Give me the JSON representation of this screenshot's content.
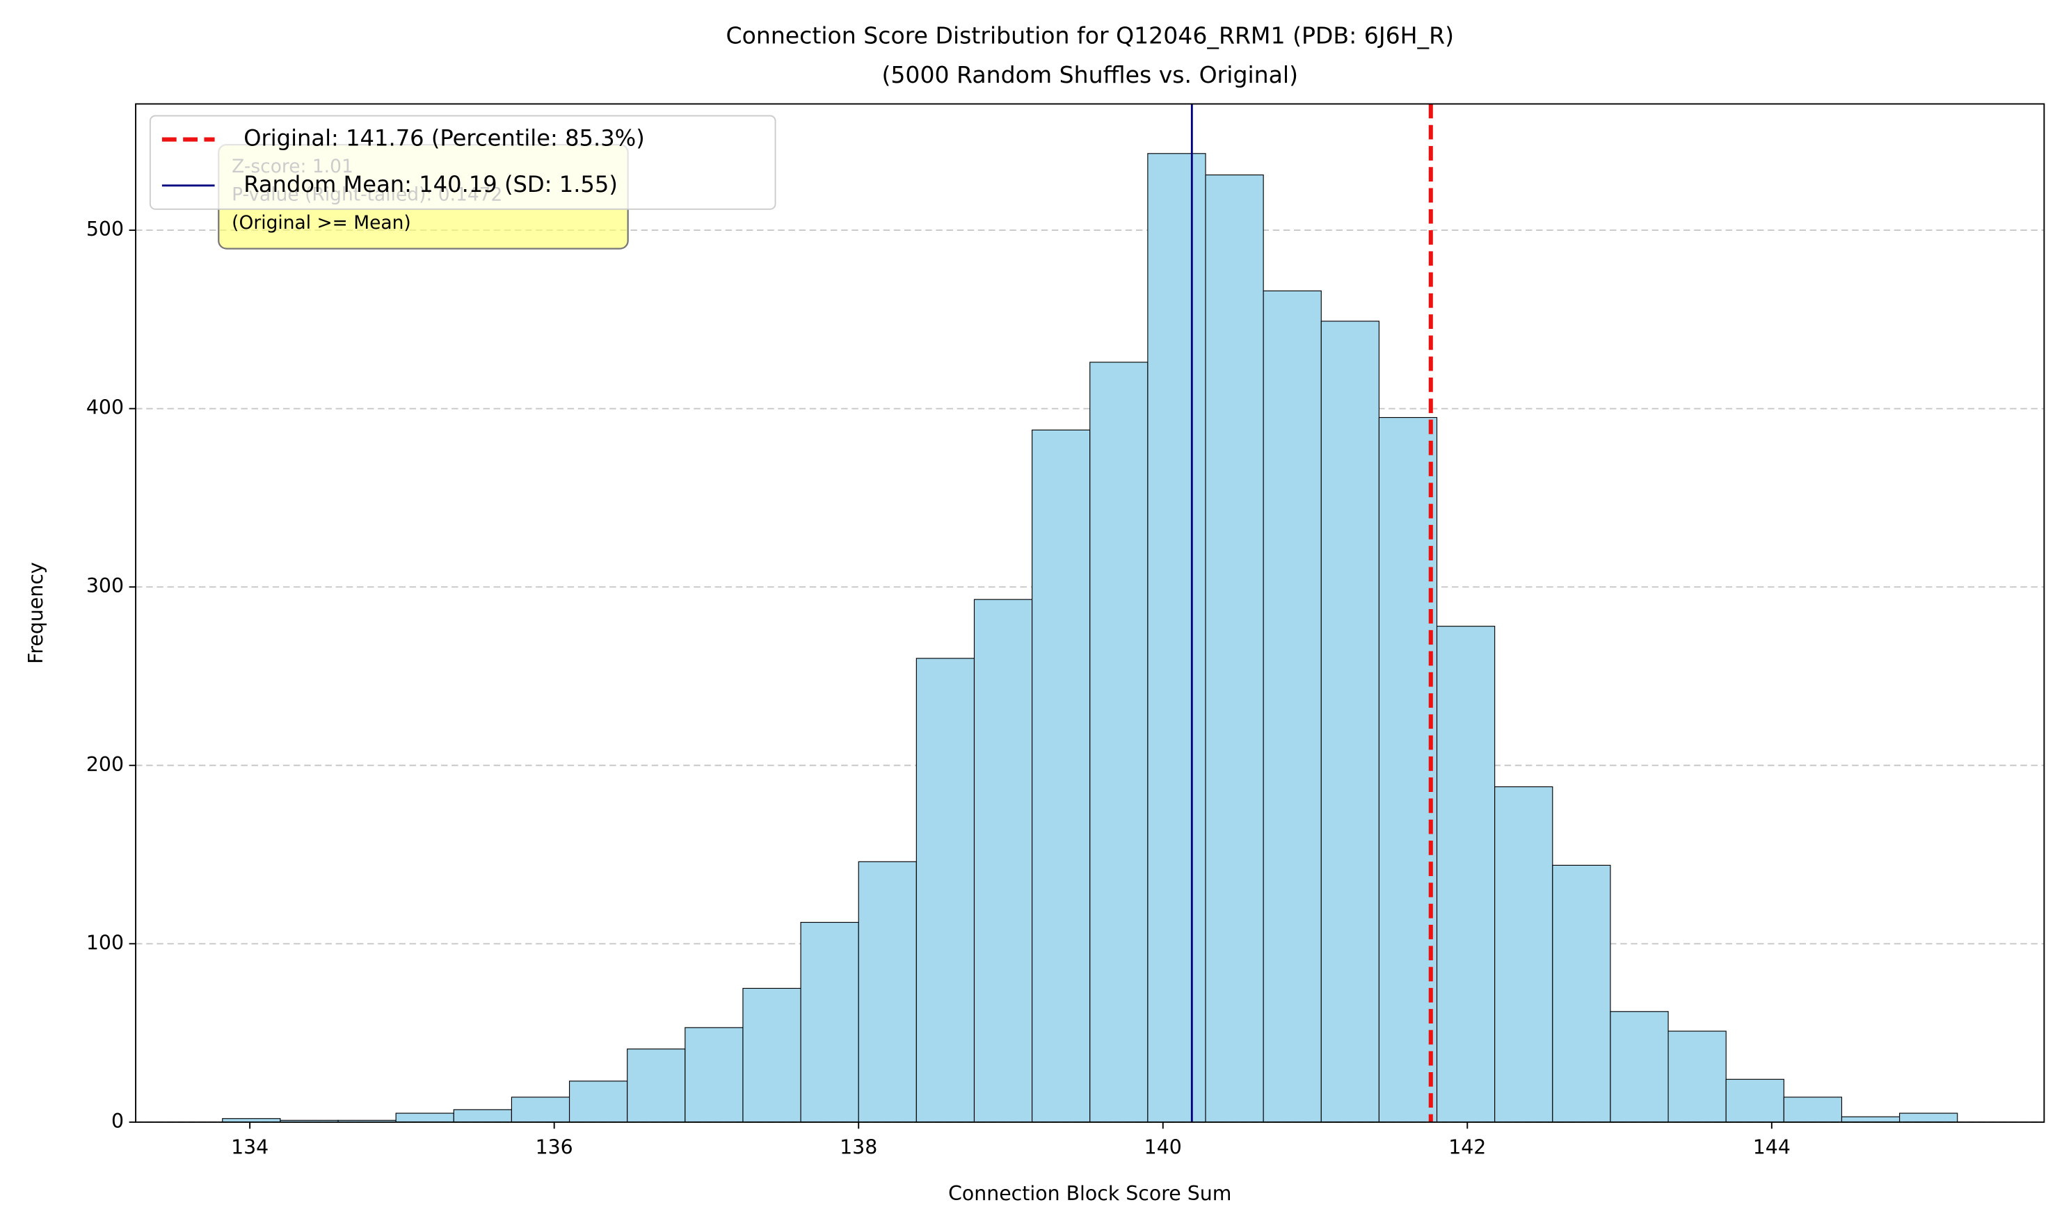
{
  "chart_data": {
    "type": "histogram",
    "title": "Connection Score Distribution for Q12046_RRM1 (PDB: 6J6H_R)",
    "subtitle": "(5000 Random Shuffles vs. Original)",
    "x_label": "Connection Block Score Sum",
    "y_label": "Frequency",
    "bins": [
      133.82,
      134.2,
      134.58,
      134.96,
      135.34,
      135.72,
      136.1,
      136.48,
      136.86,
      137.24,
      137.62,
      138.0,
      138.38,
      138.76,
      139.14,
      139.52,
      139.9,
      140.28,
      140.66,
      141.04,
      141.42,
      141.8,
      142.18,
      142.56,
      142.94,
      143.32,
      143.7,
      144.08,
      144.46,
      144.84,
      145.22
    ],
    "values": [
      2,
      1,
      1,
      5,
      7,
      14,
      23,
      41,
      53,
      75,
      112,
      146,
      260,
      293,
      388,
      426,
      543,
      531,
      466,
      449,
      395,
      278,
      188,
      144,
      62,
      51,
      24,
      14,
      3,
      5
    ],
    "color": "#a6d8ee",
    "edgecolor": "#000000",
    "xlim": [
      133.25,
      145.79
    ],
    "ylim": [
      0,
      570.8
    ],
    "xticks": [
      134,
      136,
      138,
      140,
      142,
      144
    ],
    "yticks": [
      0,
      100,
      200,
      300,
      400,
      500
    ],
    "grid": true,
    "vlines": [
      {
        "name": "Original: 141.76 (Percentile: 85.3%)",
        "value": 141.76,
        "color": "#ee1111",
        "style": "dashed"
      },
      {
        "name": "Random Mean: 140.19 (SD: 1.55)",
        "value": 140.19,
        "color": "#000080",
        "style": "solid"
      }
    ],
    "legend": "upper left",
    "annotation": [
      "Z-score: 1.01",
      "P-value (Right-tailed): 0.1472",
      "(Original >= Mean)"
    ]
  }
}
